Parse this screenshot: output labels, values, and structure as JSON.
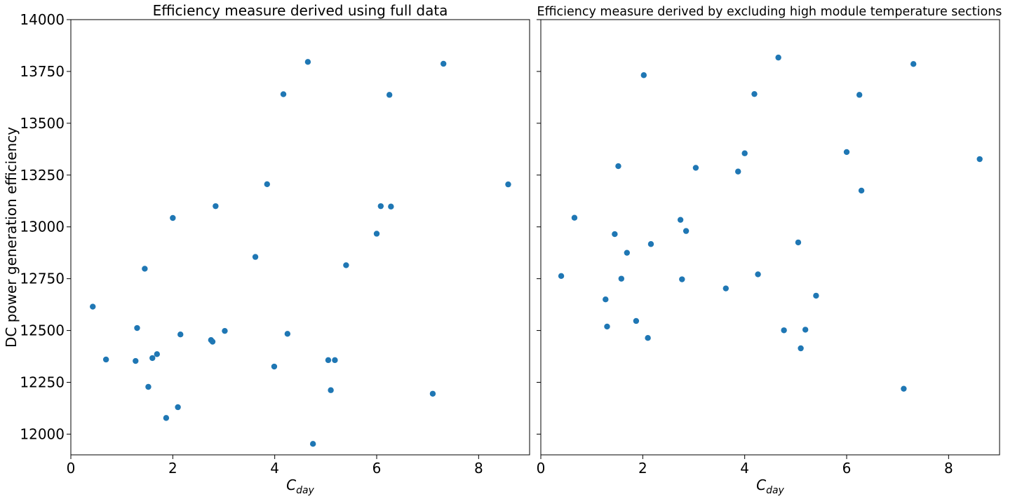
{
  "chart_data": [
    {
      "type": "scatter",
      "title": "Efficiency measure derived using full data",
      "xlabel_main": "C",
      "xlabel_sub": "day",
      "ylabel": "DC power generation efficiency",
      "xlim": [
        0,
        9
      ],
      "ylim": [
        11900,
        14000
      ],
      "xticks": [
        0,
        2,
        4,
        6,
        8
      ],
      "yticks": [
        12000,
        12250,
        12500,
        12750,
        13000,
        13250,
        13500,
        13750,
        14000
      ],
      "y_tick_labels_visible": true,
      "marker_color": "#1f77b4",
      "grid": false,
      "series": [
        {
          "points": [
            [
              0.43,
              12615
            ],
            [
              0.69,
              12360
            ],
            [
              1.27,
              12353
            ],
            [
              1.3,
              12512
            ],
            [
              1.45,
              12798
            ],
            [
              1.52,
              12228
            ],
            [
              1.6,
              12367
            ],
            [
              1.69,
              12386
            ],
            [
              1.87,
              12078
            ],
            [
              2.0,
              13043
            ],
            [
              2.1,
              12130
            ],
            [
              2.15,
              12481
            ],
            [
              2.75,
              12454
            ],
            [
              2.78,
              12446
            ],
            [
              2.84,
              13100
            ],
            [
              3.02,
              12498
            ],
            [
              3.62,
              12855
            ],
            [
              3.85,
              13206
            ],
            [
              3.99,
              12326
            ],
            [
              4.17,
              13640
            ],
            [
              4.25,
              12484
            ],
            [
              4.65,
              13796
            ],
            [
              4.75,
              11953
            ],
            [
              5.05,
              12357
            ],
            [
              5.1,
              12212
            ],
            [
              5.18,
              12357
            ],
            [
              5.4,
              12815
            ],
            [
              6.0,
              12967
            ],
            [
              6.08,
              13100
            ],
            [
              6.25,
              13637
            ],
            [
              6.28,
              13098
            ],
            [
              7.1,
              12195
            ],
            [
              7.31,
              13787
            ],
            [
              8.58,
              13205
            ]
          ]
        }
      ]
    },
    {
      "type": "scatter",
      "title": "Efficiency measure derived by excluding high module temperature sections",
      "xlabel_main": "C",
      "xlabel_sub": "day",
      "ylabel": "",
      "xlim": [
        0,
        9
      ],
      "ylim": [
        11900,
        14000
      ],
      "xticks": [
        0,
        2,
        4,
        6,
        8
      ],
      "yticks": [
        12000,
        12250,
        12500,
        12750,
        13000,
        13250,
        13500,
        13750,
        14000
      ],
      "y_tick_labels_visible": false,
      "marker_color": "#1f77b4",
      "grid": false,
      "series": [
        {
          "points": [
            [
              0.4,
              12763
            ],
            [
              0.66,
              13044
            ],
            [
              1.27,
              12650
            ],
            [
              1.3,
              12519
            ],
            [
              1.45,
              12965
            ],
            [
              1.52,
              13293
            ],
            [
              1.58,
              12750
            ],
            [
              1.69,
              12875
            ],
            [
              1.87,
              12546
            ],
            [
              2.02,
              13732
            ],
            [
              2.1,
              12464
            ],
            [
              2.16,
              12917
            ],
            [
              2.74,
              13034
            ],
            [
              2.77,
              12747
            ],
            [
              2.85,
              12980
            ],
            [
              3.04,
              13285
            ],
            [
              3.63,
              12703
            ],
            [
              3.87,
              13267
            ],
            [
              4.0,
              13355
            ],
            [
              4.19,
              13641
            ],
            [
              4.26,
              12771
            ],
            [
              4.66,
              13817
            ],
            [
              4.77,
              12501
            ],
            [
              5.05,
              12925
            ],
            [
              5.1,
              12414
            ],
            [
              5.19,
              12504
            ],
            [
              5.4,
              12668
            ],
            [
              6.0,
              13361
            ],
            [
              6.25,
              13637
            ],
            [
              6.29,
              13175
            ],
            [
              7.12,
              12219
            ],
            [
              7.31,
              13786
            ],
            [
              8.61,
              13327
            ]
          ]
        }
      ]
    }
  ]
}
